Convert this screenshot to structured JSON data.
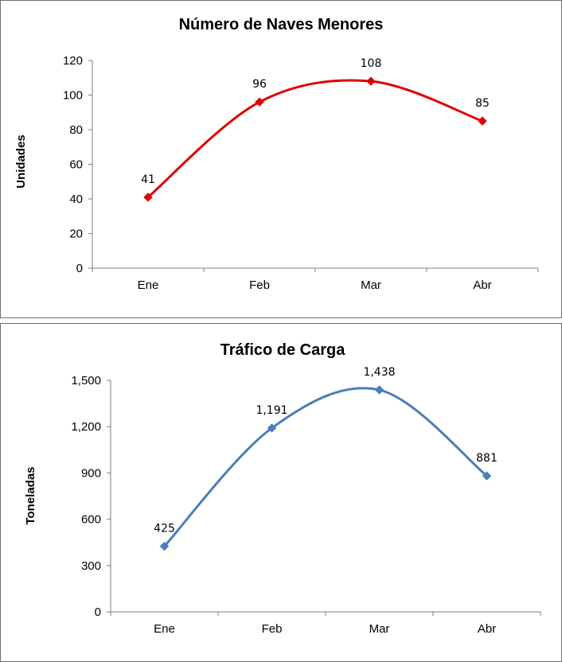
{
  "chart_data": [
    {
      "type": "line",
      "title": "Número de Naves Menores",
      "xlabel": "",
      "ylabel": "Unidades",
      "categories": [
        "Ene",
        "Feb",
        "Mar",
        "Abr"
      ],
      "series": [
        {
          "values": [
            41,
            96,
            108,
            85
          ],
          "labels": [
            "41",
            "96",
            "108",
            "85"
          ],
          "color": "#e00000",
          "marker": "diamond",
          "smooth": true
        }
      ],
      "ylim": [
        0,
        120
      ],
      "yticks": [
        0,
        20,
        40,
        60,
        80,
        100,
        120
      ],
      "ytick_labels": [
        "0",
        "20",
        "40",
        "60",
        "80",
        "100",
        "120"
      ],
      "grid": false
    },
    {
      "type": "line",
      "title": "Tráfico de Carga",
      "xlabel": "",
      "ylabel": "Toneladas",
      "categories": [
        "Ene",
        "Feb",
        "Mar",
        "Abr"
      ],
      "series": [
        {
          "values": [
            425,
            1191,
            1438,
            881
          ],
          "labels": [
            "425",
            "1,191",
            "1,438",
            "881"
          ],
          "color": "#4a7ebb",
          "marker": "diamond",
          "smooth": true
        }
      ],
      "ylim": [
        0,
        1500
      ],
      "yticks": [
        0,
        300,
        600,
        900,
        1200,
        1500
      ],
      "ytick_labels": [
        "0",
        "300",
        "600",
        "900",
        "1,200",
        "1,500"
      ],
      "grid": false
    }
  ]
}
